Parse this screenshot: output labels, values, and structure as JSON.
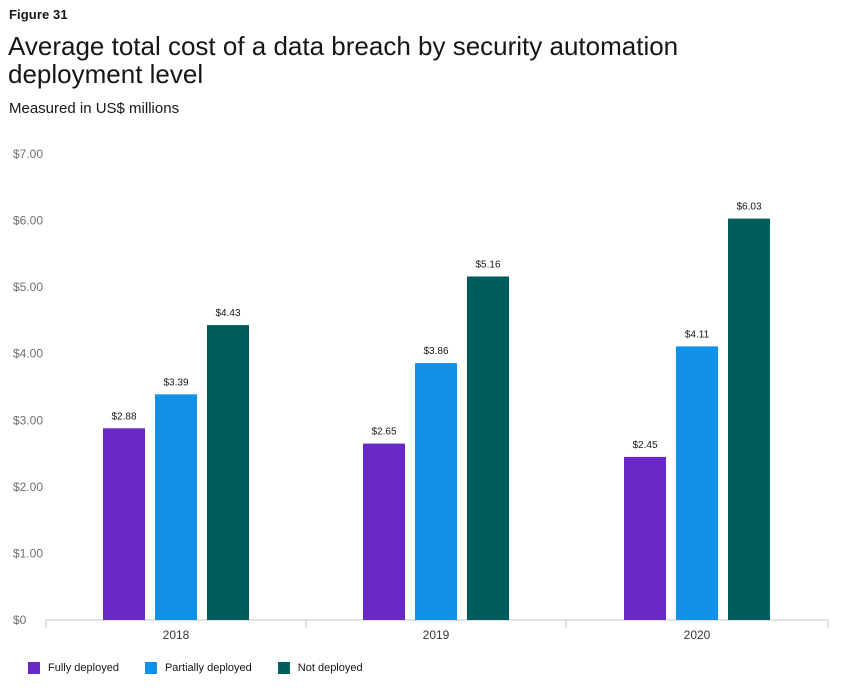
{
  "figure_label": "Figure 31",
  "chart_data": {
    "type": "bar",
    "title": "Average total cost of a data breach by security automation deployment level",
    "subtitle": "Measured in US$ millions",
    "categories": [
      "2018",
      "2019",
      "2020"
    ],
    "series": [
      {
        "name": "Fully deployed",
        "color": "#6929c4",
        "values": [
          2.88,
          2.65,
          2.45
        ],
        "labels": [
          "$2.88",
          "$2.65",
          "$2.45"
        ]
      },
      {
        "name": "Partially deployed",
        "color": "#1192e8",
        "values": [
          3.39,
          3.86,
          4.11
        ],
        "labels": [
          "$3.39",
          "$3.86",
          "$4.11"
        ]
      },
      {
        "name": "Not deployed",
        "color": "#005d5d",
        "values": [
          4.43,
          5.16,
          6.03
        ],
        "labels": [
          "$4.43",
          "$5.16",
          "$6.03"
        ]
      }
    ],
    "yticks": [
      0,
      1,
      2,
      3,
      4,
      5,
      6,
      7
    ],
    "ytick_labels": [
      "$0",
      "$1.00",
      "$2.00",
      "$3.00",
      "$4.00",
      "$5.00",
      "$6.00",
      "$7.00"
    ],
    "ylim": [
      0,
      7
    ],
    "grid": false,
    "legend_position": "bottom-left"
  }
}
